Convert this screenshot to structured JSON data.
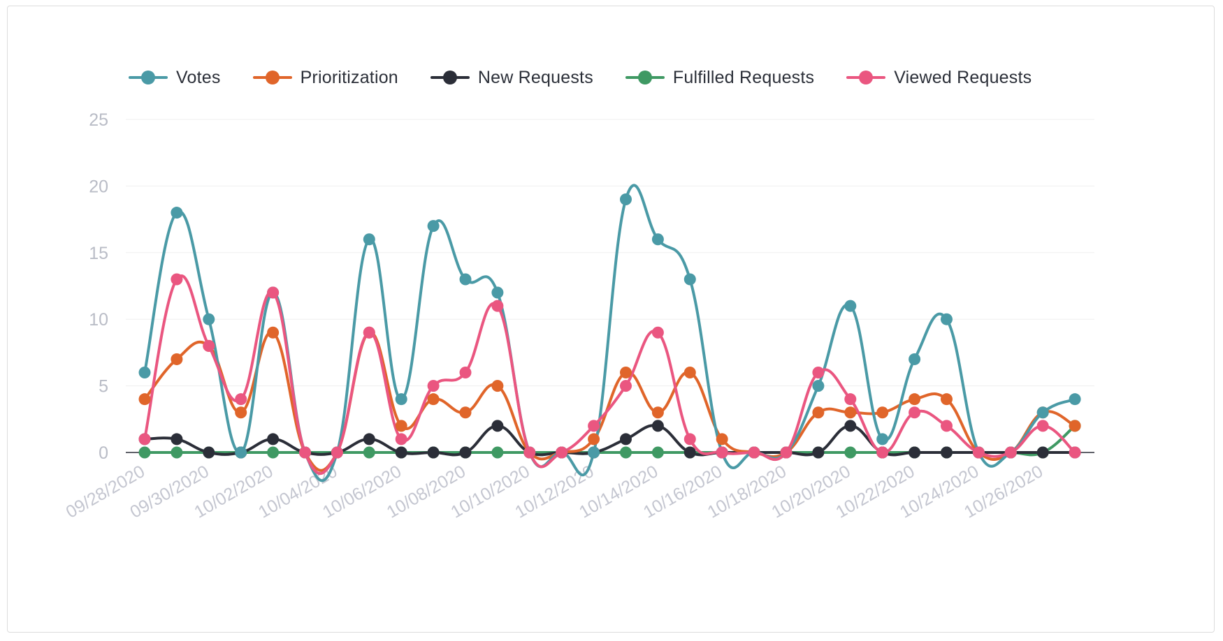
{
  "chart_data": {
    "type": "line",
    "title": "",
    "xlabel": "",
    "ylabel": "",
    "ylim": [
      0,
      25
    ],
    "yticks": [
      0,
      5,
      10,
      15,
      20,
      25
    ],
    "grid": true,
    "legend_position": "top",
    "x": [
      "09/28/2020",
      "09/29/2020",
      "09/30/2020",
      "10/01/2020",
      "10/02/2020",
      "10/03/2020",
      "10/04/2020",
      "10/05/2020",
      "10/06/2020",
      "10/07/2020",
      "10/08/2020",
      "10/09/2020",
      "10/10/2020",
      "10/11/2020",
      "10/12/2020",
      "10/13/2020",
      "10/14/2020",
      "10/15/2020",
      "10/16/2020",
      "10/17/2020",
      "10/18/2020",
      "10/19/2020",
      "10/20/2020",
      "10/21/2020",
      "10/22/2020",
      "10/23/2020",
      "10/24/2020",
      "10/25/2020",
      "10/26/2020",
      "10/27/2020"
    ],
    "x_tick_labels": [
      "09/28/2020",
      "09/30/2020",
      "10/02/2020",
      "10/04/2020",
      "10/06/2020",
      "10/08/2020",
      "10/10/2020",
      "10/12/2020",
      "10/14/2020",
      "10/16/2020",
      "10/18/2020",
      "10/20/2020",
      "10/22/2020",
      "10/24/2020",
      "10/26/2020"
    ],
    "series": [
      {
        "name": "Votes",
        "color": "#4a9aa6",
        "values": [
          6,
          18,
          10,
          0,
          12,
          0,
          0,
          16,
          4,
          17,
          13,
          12,
          0,
          0,
          0,
          19,
          16,
          13,
          0,
          0,
          0,
          5,
          11,
          1,
          7,
          10,
          0,
          0,
          3,
          4
        ]
      },
      {
        "name": "Prioritization",
        "color": "#e0652a",
        "values": [
          4,
          7,
          8,
          3,
          9,
          0,
          0,
          9,
          2,
          4,
          3,
          5,
          0,
          0,
          1,
          6,
          3,
          6,
          1,
          0,
          0,
          3,
          3,
          3,
          4,
          4,
          0,
          0,
          3,
          2
        ]
      },
      {
        "name": "New Requests",
        "color": "#2b2e38",
        "values": [
          1,
          1,
          0,
          0,
          1,
          0,
          0,
          1,
          0,
          0,
          0,
          2,
          0,
          0,
          0,
          1,
          2,
          0,
          0,
          0,
          0,
          0,
          2,
          0,
          0,
          0,
          0,
          0,
          0,
          0
        ]
      },
      {
        "name": "Fulfilled Requests",
        "color": "#3f9963",
        "values": [
          0,
          0,
          0,
          0,
          0,
          0,
          0,
          0,
          0,
          0,
          0,
          0,
          0,
          0,
          0,
          0,
          0,
          0,
          0,
          0,
          0,
          0,
          0,
          0,
          0,
          0,
          0,
          0,
          0,
          2
        ]
      },
      {
        "name": "Viewed Requests",
        "color": "#ea5680",
        "values": [
          1,
          13,
          8,
          4,
          12,
          0,
          0,
          9,
          1,
          5,
          6,
          11,
          0,
          0,
          2,
          5,
          9,
          1,
          0,
          0,
          0,
          6,
          4,
          0,
          3,
          2,
          0,
          0,
          2,
          0
        ]
      }
    ]
  }
}
